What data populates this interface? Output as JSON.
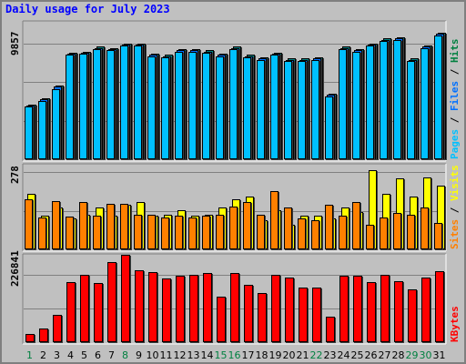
{
  "chart_data": {
    "type": "bar",
    "title": "Daily usage for July 2023",
    "categories": [
      "1",
      "2",
      "3",
      "4",
      "5",
      "6",
      "7",
      "8",
      "9",
      "10",
      "11",
      "12",
      "13",
      "14",
      "15",
      "16",
      "17",
      "18",
      "19",
      "20",
      "21",
      "22",
      "23",
      "24",
      "25",
      "26",
      "27",
      "28",
      "29",
      "30",
      "31"
    ],
    "weekend_days": [
      "1",
      "8",
      "15",
      "16",
      "22",
      "29",
      "30"
    ],
    "panels": [
      {
        "panel": "pages-files-hits",
        "y_tick_label": "9857",
        "ylim": [
          0,
          11500
        ],
        "side_label": [
          {
            "text": "Pages",
            "color": "#00c0ff"
          },
          {
            "text": " / ",
            "color": "#000000"
          },
          {
            "text": "Files",
            "color": "#0070ff"
          },
          {
            "text": " / ",
            "color": "#000000"
          },
          {
            "text": "Hits",
            "color": "#008040"
          }
        ],
        "series": [
          {
            "name": "Hits",
            "color": "#008080",
            "values": [
              4700,
              5200,
              6300,
              9100,
              9200,
              9600,
              9500,
              9900,
              9900,
              9000,
              8900,
              9400,
              9400,
              9300,
              9000,
              9600,
              8900,
              8700,
              9100,
              8600,
              8600,
              8700,
              5600,
              9600,
              9400,
              9900,
              10300,
              10400,
              8600,
              9700,
              10800
            ]
          },
          {
            "name": "Files",
            "color": "#0070ff",
            "values": [
              4600,
              5100,
              6200,
              9000,
              9100,
              9500,
              9400,
              9800,
              9800,
              8900,
              8800,
              9300,
              9300,
              9200,
              8900,
              9500,
              8800,
              8600,
              9000,
              8500,
              8500,
              8600,
              5500,
              9500,
              9300,
              9800,
              10200,
              10300,
              8500,
              9600,
              10700
            ]
          },
          {
            "name": "Pages",
            "color": "#00c0ff",
            "values": [
              4500,
              5000,
              6000,
              8900,
              9000,
              9400,
              9300,
              9700,
              9700,
              8800,
              8700,
              9200,
              9200,
              9100,
              8800,
              9400,
              8700,
              8500,
              8900,
              8400,
              8400,
              8500,
              5400,
              9400,
              9200,
              9700,
              10100,
              10200,
              8400,
              9500,
              10600
            ]
          }
        ]
      },
      {
        "panel": "sites-visits",
        "y_tick_label": "278",
        "ylim": [
          0,
          298
        ],
        "side_label": [
          {
            "text": "Sites",
            "color": "#ff8000"
          },
          {
            "text": " / ",
            "color": "#000000"
          },
          {
            "text": "Visits",
            "color": "#ffff00"
          }
        ],
        "series": [
          {
            "name": "Visits",
            "color": "#ffff00",
            "values": [
              200,
              120,
              150,
              110,
              125,
              150,
              120,
              160,
              170,
              120,
              125,
              140,
              120,
              125,
              150,
              180,
              190,
              105,
              140,
              90,
              120,
              120,
              110,
              150,
              135,
              285,
              200,
              255,
              190,
              260,
              230
            ]
          },
          {
            "name": "Sites",
            "color": "#ff8000",
            "values": [
              180,
              115,
              175,
              118,
              170,
              120,
              165,
              165,
              125,
              125,
              115,
              120,
              115,
              120,
              125,
              155,
              170,
              125,
              210,
              150,
              110,
              105,
              160,
              120,
              170,
              90,
              115,
              130,
              125,
              150,
              95
            ]
          }
        ]
      },
      {
        "panel": "kbytes",
        "y_tick_label": "226841",
        "ylim": [
          0,
          290000
        ],
        "side_label": [
          {
            "text": "KBytes",
            "color": "#ff0000"
          }
        ],
        "series": [
          {
            "name": "KBytes",
            "color": "#ff0000",
            "values": [
              28000,
              45000,
              92000,
              205000,
              228000,
              202000,
              270000,
              295000,
              245000,
              237000,
              215000,
              225000,
              228000,
              233000,
              155000,
              233000,
              193000,
              168000,
              228000,
              218000,
              185000,
              185000,
              85000,
              225000,
              225000,
              205000,
              228000,
              207000,
              178000,
              218000,
              240000
            ]
          }
        ]
      }
    ],
    "grid": true
  },
  "colors": {
    "background": "#c0c0c0",
    "title": "#0000ff",
    "weekday_label": "#000000",
    "weekend_label": "#008040",
    "shadow": "#404040"
  }
}
